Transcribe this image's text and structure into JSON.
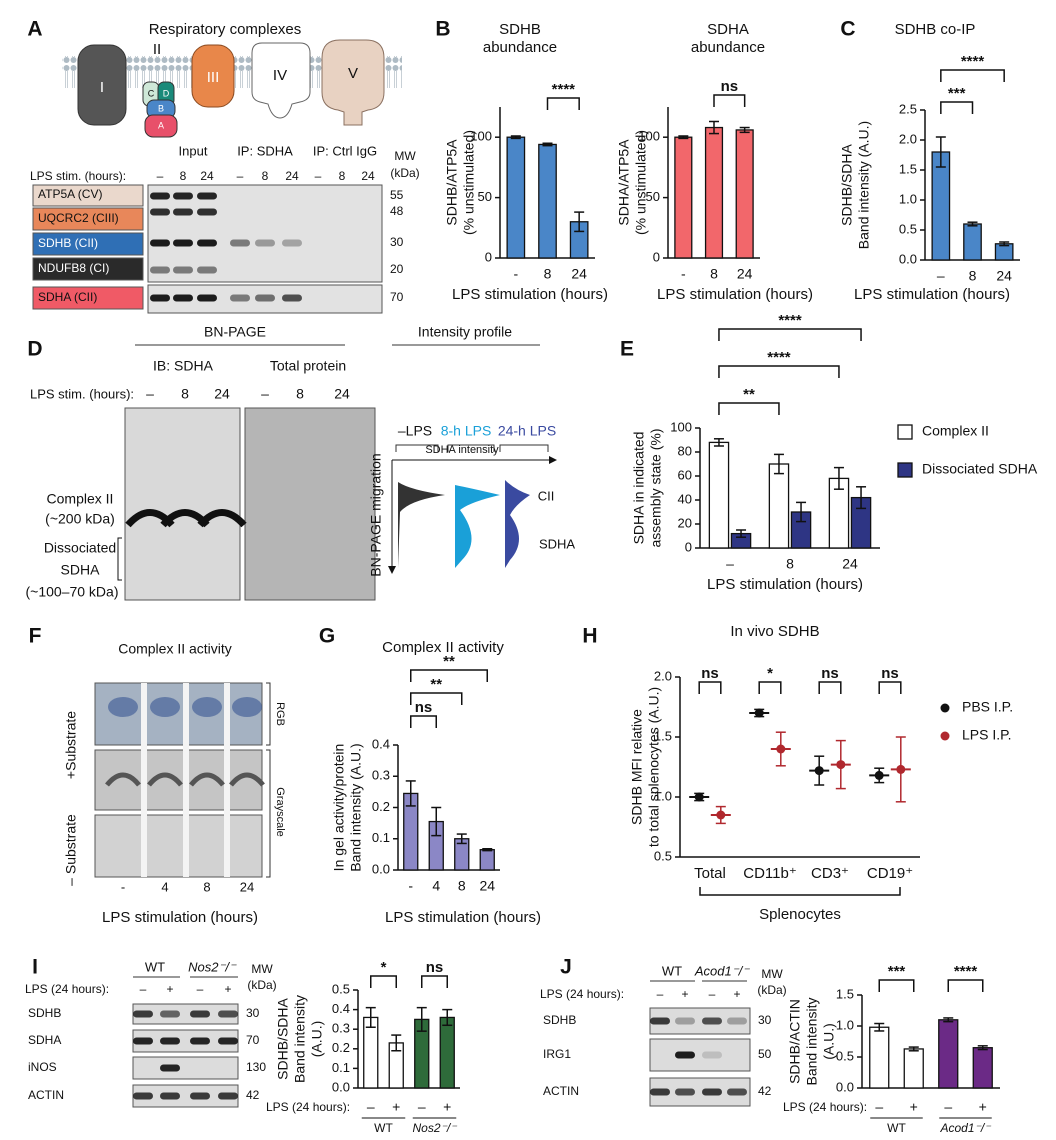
{
  "panel_labels": [
    "A",
    "B",
    "C",
    "D",
    "E",
    "F",
    "G",
    "H",
    "I",
    "J"
  ],
  "panel_a": {
    "title": "Respiratory complexes",
    "complexes": [
      "I",
      "II",
      "III",
      "IV",
      "V"
    ],
    "subunits": [
      "C",
      "D",
      "B",
      "A"
    ],
    "blot": {
      "groups": [
        "Input",
        "IP: SDHA",
        "IP: Ctrl IgG"
      ],
      "mw_header": [
        "MW",
        "(kDa)"
      ],
      "condition_label": "LPS stim. (hours):",
      "lanes": [
        "–",
        "8",
        "24",
        "–",
        "8",
        "24",
        "–",
        "8",
        "24"
      ],
      "rows": [
        "ATP5A (CV)",
        "UQCRC2 (CIII)",
        "SDHB (CII)",
        "NDUFB8 (CI)",
        "SDHA (CII)"
      ],
      "mw": [
        55,
        48,
        30,
        20,
        70
      ]
    }
  },
  "panel_d": {
    "header": "BN-PAGE",
    "profile_header": "Intensity profile",
    "gels": [
      "IB: SDHA",
      "Total protein"
    ],
    "condition_label": "LPS stim. (hours):",
    "lanes": [
      "–",
      "8",
      "24",
      "–",
      "8",
      "24"
    ],
    "band_labels": [
      "Complex II",
      "(~200 kDa)",
      "Dissociated",
      "SDHA",
      "(~100–70 kDa)"
    ],
    "profiles": [
      "–LPS",
      "8-h LPS",
      "24-h LPS"
    ],
    "x_axis": "SDHA intensity",
    "y_axis": "BN-PAGE migration",
    "peaks": [
      "CII",
      "SDHA"
    ]
  },
  "panel_f": {
    "title": "Complex II activity",
    "conditions": [
      "+Substrate",
      "– Substrate"
    ],
    "images": [
      "RGB",
      "Grayscale"
    ],
    "lanes": [
      "-",
      "4",
      "8",
      "24"
    ],
    "xlabel": "LPS stimulation (hours)"
  },
  "panel_i_blot": {
    "genotypes": [
      "WT",
      "Nos2⁻/⁻"
    ],
    "mw_header": [
      "MW",
      "(kDa)"
    ],
    "condition_label": "LPS (24 hours):",
    "lanes": [
      "–",
      "+",
      "–",
      "+"
    ],
    "rows": [
      "SDHB",
      "SDHA",
      "iNOS",
      "ACTIN"
    ],
    "mw": [
      30,
      70,
      130,
      42
    ]
  },
  "panel_j_blot": {
    "genotypes": [
      "WT",
      "Acod1⁻/⁻"
    ],
    "mw_header": [
      "MW",
      "(kDa)"
    ],
    "condition_label": "LPS (24 hours):",
    "lanes": [
      "–",
      "+",
      "–",
      "+"
    ],
    "rows": [
      "SDHB",
      "IRG1",
      "ACTIN"
    ],
    "mw": [
      30,
      50,
      42
    ]
  },
  "chart_data": [
    {
      "type": "bar",
      "title": [
        "SDHB",
        "abundance"
      ],
      "ylabel": [
        "SDHB/ATP5A",
        "(% unstimulated)"
      ],
      "xlabel": "LPS stimulation (hours)",
      "categories": [
        "-",
        "8",
        "24"
      ],
      "values": [
        100,
        94,
        30
      ],
      "errors": [
        1,
        1,
        8
      ],
      "color": "#4a86c8",
      "ylim": [
        0,
        125
      ],
      "yticks": [
        0,
        50,
        100
      ],
      "brackets": [
        {
          "label": "****",
          "from": 1,
          "to": 2
        }
      ]
    },
    {
      "type": "bar",
      "title": [
        "SDHA",
        "abundance"
      ],
      "ylabel": [
        "SDHA/ATP5A",
        "(% unstimulated)"
      ],
      "xlabel": "LPS stimulation (hours)",
      "categories": [
        "-",
        "8",
        "24"
      ],
      "values": [
        100,
        108,
        106
      ],
      "errors": [
        1,
        5,
        2
      ],
      "color": "#f2676b",
      "ylim": [
        0,
        125
      ],
      "yticks": [
        0,
        50,
        100
      ],
      "brackets": [
        {
          "label": "ns",
          "from": 1,
          "to": 2
        }
      ]
    },
    {
      "type": "bar",
      "title": [
        "SDHB co-IP"
      ],
      "ylabel": [
        "SDHB/SDHA",
        "Band intensity (A.U.)"
      ],
      "xlabel": "LPS stimulation (hours)",
      "categories": [
        "–",
        "8",
        "24"
      ],
      "values": [
        1.8,
        0.6,
        0.27
      ],
      "errors": [
        0.25,
        0.03,
        0.03
      ],
      "color": "#4a86c8",
      "ylim": [
        0,
        2.5
      ],
      "yticks": [
        {
          "value": 0,
          "label": "0.0"
        },
        0.5,
        {
          "value": 1,
          "label": "1.0"
        },
        1.5,
        {
          "value": 2,
          "label": "2.0"
        },
        2.5
      ],
      "brackets": [
        {
          "label": "***",
          "from": 0,
          "to": 1
        },
        {
          "label": "****",
          "from": 0,
          "to": 2
        }
      ]
    },
    {
      "type": "grouped_bar",
      "ylabel": [
        "SDHA in indicated",
        "assembly state (%)"
      ],
      "xlabel": "LPS stimulation (hours)",
      "categories": [
        "–",
        "8",
        "24"
      ],
      "series": [
        {
          "name": "Complex II",
          "color": "#ffffff",
          "values": [
            88,
            70,
            58
          ],
          "errors": [
            3,
            8,
            9
          ]
        },
        {
          "name": "Dissociated SDHA",
          "color": "#2e3584",
          "values": [
            12,
            30,
            42
          ],
          "errors": [
            3,
            8,
            9
          ]
        }
      ],
      "ylim": [
        0,
        100
      ],
      "yticks": [
        0,
        20,
        40,
        60,
        80,
        100
      ],
      "legend": "right",
      "brackets": [
        {
          "label": "**",
          "from": 0,
          "to": 2
        },
        {
          "label": "****",
          "from": 0,
          "to": 4
        },
        {
          "label": "****",
          "from": 0,
          "to": 5
        }
      ]
    },
    {
      "type": "bar",
      "title": [
        "Complex II activity"
      ],
      "ylabel": [
        "In gel activity/protein",
        "Band intensity (A.U.)"
      ],
      "xlabel": "LPS stimulation (hours)",
      "categories": [
        "-",
        "4",
        "8",
        "24"
      ],
      "values": [
        0.245,
        0.155,
        0.1,
        0.065
      ],
      "errors": [
        0.04,
        0.045,
        0.015,
        0.003
      ],
      "color": "#8b87c6",
      "ylim": [
        0,
        0.4
      ],
      "yticks": [
        {
          "value": 0,
          "label": "0.0"
        },
        0.1,
        0.2,
        0.3,
        0.4
      ],
      "brackets": [
        {
          "label": "ns",
          "from": 0,
          "to": 1
        },
        {
          "label": "**",
          "from": 0,
          "to": 2
        },
        {
          "label": "**",
          "from": 0,
          "to": 3
        }
      ]
    },
    {
      "type": "dot",
      "title": [
        "In vivo SDHB"
      ],
      "ylabel": [
        "SDHB MFI relative",
        "to total splenocytes (A.U.)"
      ],
      "categories": [
        "Total",
        "CD11b⁺",
        "CD3⁺",
        "CD19⁺"
      ],
      "group_label": "Splenocytes",
      "series": [
        {
          "name": "PBS I.P.",
          "color": "#111111",
          "values": [
            1.0,
            1.7,
            1.22,
            1.18
          ],
          "errors": [
            0.03,
            0.03,
            0.12,
            0.06
          ]
        },
        {
          "name": "LPS I.P.",
          "color": "#b0282e",
          "values": [
            0.85,
            1.4,
            1.27,
            1.23
          ],
          "errors": [
            0.07,
            0.14,
            0.2,
            0.27
          ]
        }
      ],
      "ylim": [
        0.5,
        2.0
      ],
      "yticks": [
        0.5,
        {
          "value": 1,
          "label": "1.0"
        },
        1.5,
        {
          "value": 2,
          "label": "2.0"
        }
      ],
      "legend": "right",
      "brackets": [
        {
          "label": "ns",
          "from": 0,
          "to": 1
        },
        {
          "label": "*",
          "from": 2,
          "to": 3
        },
        {
          "label": "ns",
          "from": 4,
          "to": 5
        },
        {
          "label": "ns",
          "from": 6,
          "to": 7
        }
      ]
    },
    {
      "type": "bar",
      "ylabel": [
        "SDHB/SDHA",
        "Band intensity",
        "(A.U.)"
      ],
      "condition_label": "LPS (24 hours):",
      "categories": [
        "–",
        "+",
        "–",
        "+"
      ],
      "groups": [
        "WT",
        "Nos2⁻/⁻"
      ],
      "values": [
        0.36,
        0.23,
        0.35,
        0.36
      ],
      "errors": [
        0.05,
        0.04,
        0.06,
        0.04
      ],
      "colors": [
        "#ffffff",
        "#ffffff",
        "#2e6b3a",
        "#2e6b3a"
      ],
      "ylim": [
        0,
        0.5
      ],
      "yticks": [
        {
          "value": 0,
          "label": "0.0"
        },
        0.1,
        0.2,
        0.3,
        0.4,
        0.5
      ],
      "brackets": [
        {
          "label": "*",
          "from": 0,
          "to": 1
        },
        {
          "label": "ns",
          "from": 2,
          "to": 3
        }
      ]
    },
    {
      "type": "bar",
      "ylabel": [
        "SDHB/ACTIN",
        "Band intensity",
        "(A.U.)"
      ],
      "condition_label": "LPS (24 hours):",
      "categories": [
        "–",
        "+",
        "–",
        "+"
      ],
      "groups": [
        "WT",
        "Acod1⁻/⁻"
      ],
      "values": [
        0.98,
        0.63,
        1.1,
        0.65
      ],
      "errors": [
        0.06,
        0.03,
        0.03,
        0.03
      ],
      "colors": [
        "#ffffff",
        "#ffffff",
        "#6b2a86",
        "#6b2a86"
      ],
      "ylim": [
        0,
        1.5
      ],
      "yticks": [
        {
          "value": 0,
          "label": "0.0"
        },
        0.5,
        {
          "value": 1,
          "label": "1.0"
        },
        1.5
      ],
      "brackets": [
        {
          "label": "***",
          "from": 0,
          "to": 1
        },
        {
          "label": "****",
          "from": 2,
          "to": 3
        }
      ]
    }
  ]
}
